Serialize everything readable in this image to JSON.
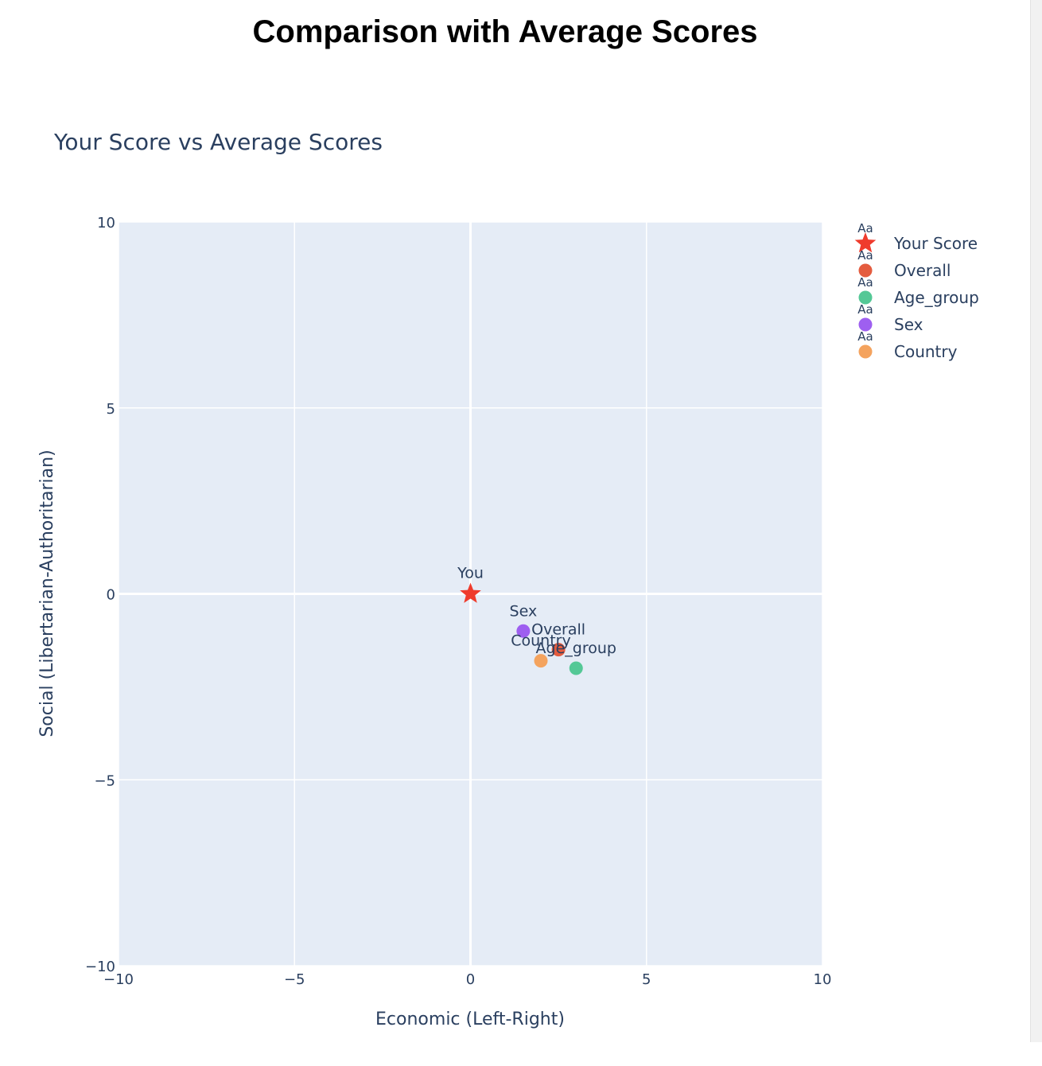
{
  "page": {
    "title": "Comparison with Average Scores"
  },
  "chart_data": {
    "type": "scatter",
    "title": "Your Score vs Average Scores",
    "xlabel": "Economic (Left-Right)",
    "ylabel": "Social (Libertarian-Authoritarian)",
    "xlim": [
      -10,
      10
    ],
    "ylim": [
      -10,
      10
    ],
    "xticks": [
      -10,
      -5,
      0,
      5,
      10
    ],
    "yticks": [
      -10,
      -5,
      0,
      5,
      10
    ],
    "xtick_labels": [
      "−10",
      "−5",
      "0",
      "5",
      "10"
    ],
    "ytick_labels": [
      "−10",
      "−5",
      "0",
      "5",
      "10"
    ],
    "grid": true,
    "legend_position": "right",
    "legend_symbol_text": "Aa",
    "plot_background": "#e5ecf6",
    "series": [
      {
        "name": "Your Score",
        "label": "You",
        "x": 0,
        "y": 0,
        "marker": "star",
        "color": "#ef3b2c"
      },
      {
        "name": "Overall",
        "label": "Overall",
        "x": 2.5,
        "y": -1.5,
        "marker": "circle",
        "color": "#e45c3f"
      },
      {
        "name": "Age_group",
        "label": "Age_group",
        "x": 3,
        "y": -2,
        "marker": "circle",
        "color": "#54c896"
      },
      {
        "name": "Sex",
        "label": "Sex",
        "x": 1.5,
        "y": -1,
        "marker": "circle",
        "color": "#9e5ff0"
      },
      {
        "name": "Country",
        "label": "Country",
        "x": 2,
        "y": -1.8,
        "marker": "circle",
        "color": "#f4a35e"
      }
    ]
  }
}
